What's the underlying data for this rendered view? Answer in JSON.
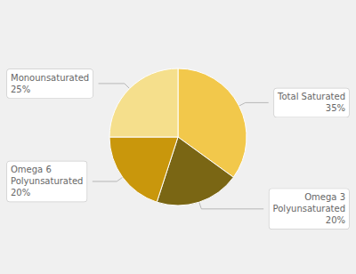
{
  "chart_data": {
    "type": "pie",
    "categories": [
      "Total Saturated",
      "Omega 3\nPolyunsaturated",
      "Omega 6\nPolyunsaturated",
      "Monounsaturated"
    ],
    "values": [
      35,
      20,
      20,
      25
    ],
    "value_labels": [
      "35%",
      "20%",
      "20%",
      "25%"
    ],
    "colors": [
      "#F2C84B",
      "#7A6614",
      "#C9970C",
      "#F5DF8C"
    ],
    "data_labels": true
  }
}
